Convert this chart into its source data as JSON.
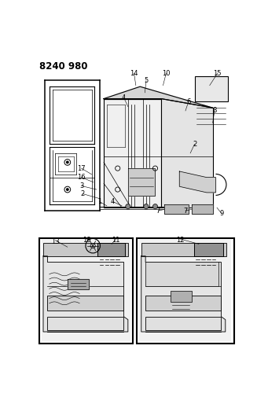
{
  "title": "8240 980",
  "bg": "#ffffff",
  "fig_w": 3.41,
  "fig_h": 5.33,
  "dpi": 100,
  "gray_light": "#d8d8d8",
  "gray_mid": "#b0b0b0",
  "gray_dark": "#888888"
}
